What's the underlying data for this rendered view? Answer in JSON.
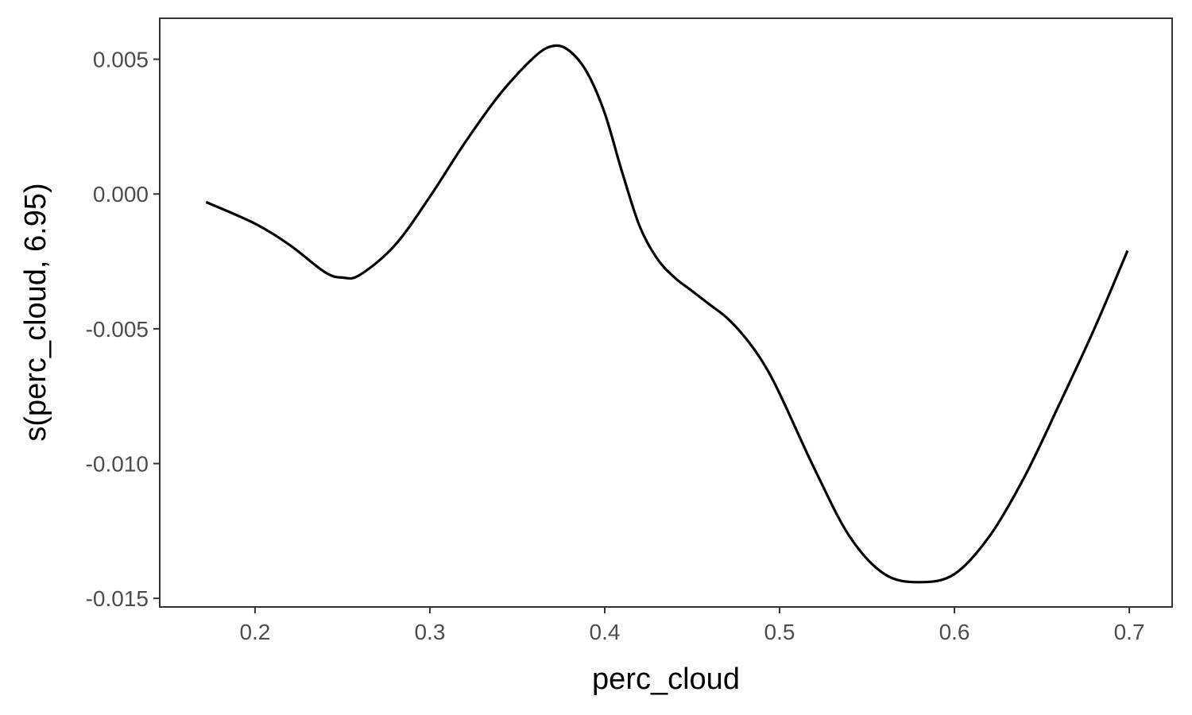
{
  "chart_data": {
    "type": "line",
    "title": "",
    "xlabel": "perc_cloud",
    "ylabel": "s(perc_cloud, 6.95)",
    "xlim": [
      0.1455,
      0.7245
    ],
    "ylim": [
      -0.01532,
      0.00652
    ],
    "x_ticks": [
      0.2,
      0.3,
      0.4,
      0.5,
      0.6,
      0.7
    ],
    "x_tick_labels": [
      "0.2",
      "0.3",
      "0.4",
      "0.5",
      "0.6",
      "0.7"
    ],
    "y_ticks": [
      0.005,
      0.0,
      -0.005,
      -0.01,
      -0.015
    ],
    "y_tick_labels": [
      "0.005",
      "0.000",
      "-0.005",
      "-0.010",
      "-0.015"
    ],
    "grid": false,
    "legend": "none",
    "series": [
      {
        "color": "#000000",
        "x": [
          0.172,
          0.2,
          0.22,
          0.24,
          0.25,
          0.26,
          0.28,
          0.3,
          0.32,
          0.34,
          0.36,
          0.371,
          0.38,
          0.39,
          0.4,
          0.41,
          0.42,
          0.43,
          0.44,
          0.45,
          0.46,
          0.47,
          0.48,
          0.49,
          0.5,
          0.52,
          0.54,
          0.56,
          0.58,
          0.6,
          0.62,
          0.64,
          0.66,
          0.68,
          0.699
        ],
        "y": [
          -0.0003,
          -0.0011,
          -0.0019,
          -0.0029,
          -0.0031,
          -0.003,
          -0.0019,
          -0.0001,
          0.0019,
          0.0037,
          0.0051,
          0.0055,
          0.0053,
          0.0045,
          0.003,
          0.0008,
          -0.0012,
          -0.0024,
          -0.0031,
          -0.0036,
          -0.0041,
          -0.0046,
          -0.0053,
          -0.0062,
          -0.0074,
          -0.0102,
          -0.0127,
          -0.0141,
          -0.0144,
          -0.0141,
          -0.0127,
          -0.0105,
          -0.0078,
          -0.005,
          -0.0021
        ]
      }
    ]
  }
}
